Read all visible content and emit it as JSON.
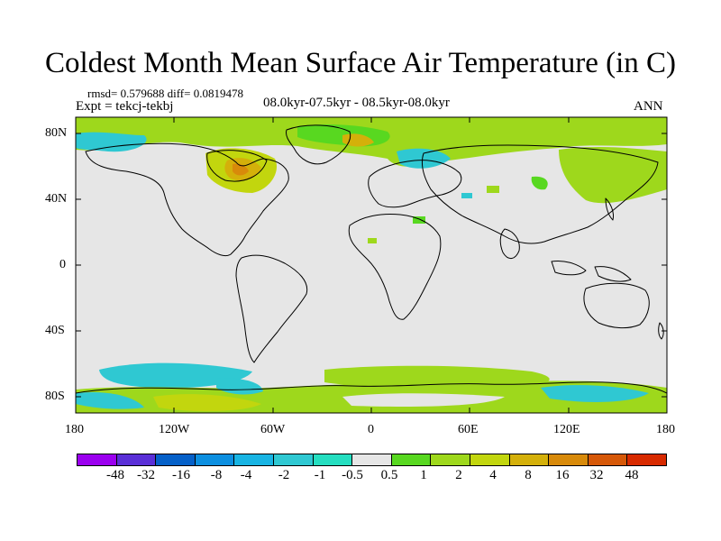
{
  "title": "Coldest Month Mean Surface Air Temperature (in C)",
  "stats": {
    "rmsd_diff": "rmsd= 0.579688 diff= 0.0819478",
    "expt": "Expt = tekcj-tekbj",
    "period": "08.0kyr-07.5kyr - 08.5kyr-08.0kyr",
    "season": "ANN"
  },
  "axes": {
    "x_ticks": [
      "180",
      "120W",
      "60W",
      "0",
      "60E",
      "120E",
      "180"
    ],
    "y_ticks": [
      "80N",
      "40N",
      "0",
      "40S",
      "80S"
    ]
  },
  "colorbar": {
    "colors": [
      "#9b00ef",
      "#5a2fd7",
      "#0560c8",
      "#0c8fe0",
      "#18b4e3",
      "#2fc8d2",
      "#25dec0",
      "#e6e6e6",
      "#58d820",
      "#9ed81c",
      "#c2d60e",
      "#d4b00a",
      "#d88a0a",
      "#d65808",
      "#d82a00"
    ],
    "labels": [
      "-48",
      "-32",
      "-16",
      "-8",
      "-4",
      "-2",
      "-1",
      "-0.5",
      "0.5",
      "1",
      "2",
      "4",
      "8",
      "16",
      "32",
      "48"
    ]
  }
}
